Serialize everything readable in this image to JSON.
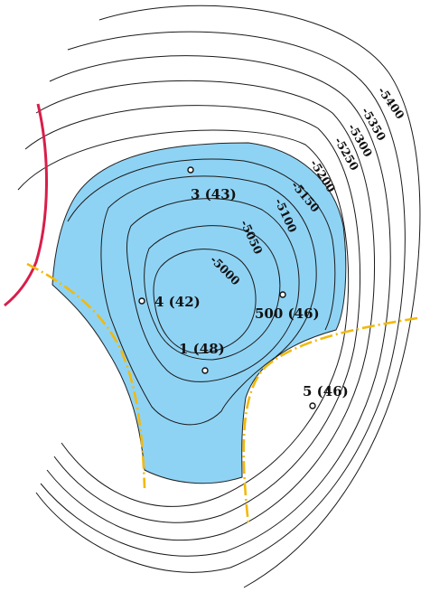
{
  "map": {
    "colors": {
      "pool_fill": "#8fd3f4",
      "fault_yellow": "#f2b90c",
      "fault_red": "#d81e4a",
      "contour": "#1a1a1a"
    },
    "contour_labels": [
      "-5000",
      "-5050",
      "-5100",
      "-5150",
      "-5200",
      "-5250",
      "-5300",
      "-5350",
      "-5400"
    ],
    "wells": [
      {
        "label": "1 (48)"
      },
      {
        "label": "3 (43)"
      },
      {
        "label": "4 (42)"
      },
      {
        "label": "500 (46)"
      },
      {
        "label": "5 (46)"
      }
    ]
  }
}
